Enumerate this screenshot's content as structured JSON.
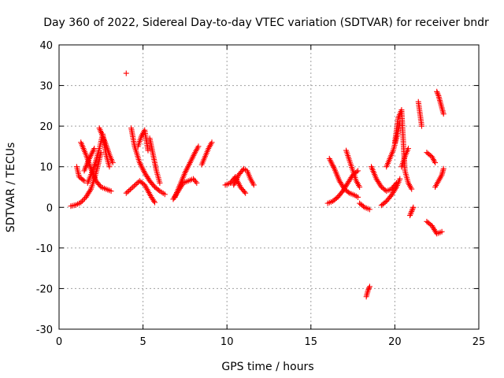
{
  "chart_data": {
    "type": "scatter",
    "title": "Day 360 of 2022, Sidereal Day-to-day VTEC variation (SDTVAR) for receiver bndr",
    "xlabel": "GPS time / hours",
    "ylabel": "SDTVAR / TECUs",
    "xlim": [
      0,
      25
    ],
    "ylim": [
      -30,
      40
    ],
    "xticks": [
      0,
      5,
      10,
      15,
      20,
      25
    ],
    "yticks": [
      -30,
      -20,
      -10,
      0,
      10,
      20,
      30,
      40
    ],
    "xtick_labels": [
      "0",
      "5",
      "10",
      "15",
      "20",
      "25"
    ],
    "ytick_labels": [
      "-30",
      "-20",
      "-10",
      "0",
      "10",
      "20",
      "30",
      "40"
    ],
    "grid": true,
    "marker": "+",
    "color": "#ff0000",
    "series": [
      {
        "name": "s1",
        "x": [
          0.7,
          1.0,
          1.3,
          1.6,
          1.9,
          2.1,
          2.3,
          2.5
        ],
        "y": [
          0.3,
          0.6,
          1.2,
          2.5,
          4.5,
          7.0,
          10.0,
          13.5
        ]
      },
      {
        "name": "s2",
        "x": [
          1.3,
          1.6,
          1.9,
          2.2,
          2.5,
          2.8,
          3.1
        ],
        "y": [
          16.0,
          13.0,
          9.5,
          6.5,
          5.0,
          4.5,
          4.0
        ]
      },
      {
        "name": "s3",
        "x": [
          1.7,
          1.95,
          2.2,
          2.4,
          2.6,
          2.8,
          3.0
        ],
        "y": [
          6.0,
          8.5,
          11.5,
          14.5,
          18.0,
          13.0,
          10.0
        ]
      },
      {
        "name": "s4",
        "x": [
          1.5,
          1.8,
          2.1
        ],
        "y": [
          9.0,
          12.0,
          14.5
        ]
      },
      {
        "name": "s5",
        "x": [
          2.4,
          2.7,
          3.0,
          3.2
        ],
        "y": [
          19.5,
          16.5,
          13.0,
          11.0
        ]
      },
      {
        "name": "s6",
        "x": [
          1.05,
          1.2,
          1.5
        ],
        "y": [
          10.0,
          7.5,
          6.5
        ]
      },
      {
        "name": "s7",
        "x": [
          4.0
        ],
        "y": [
          33.0
        ]
      },
      {
        "name": "s8",
        "x": [
          4.0,
          4.4,
          4.8,
          5.1,
          5.3,
          5.5,
          5.7
        ],
        "y": [
          3.5,
          5.0,
          6.5,
          5.5,
          4.0,
          2.5,
          1.2
        ]
      },
      {
        "name": "s9",
        "x": [
          4.3,
          4.5,
          4.8,
          5.1,
          5.4,
          5.7,
          6.0,
          6.3
        ],
        "y": [
          19.5,
          15.0,
          11.0,
          8.5,
          6.5,
          5.0,
          4.0,
          3.2
        ]
      },
      {
        "name": "s10",
        "x": [
          4.7,
          4.9,
          5.1,
          5.3
        ],
        "y": [
          15.0,
          17.5,
          19.0,
          14.0
        ]
      },
      {
        "name": "s11",
        "x": [
          5.4,
          5.6,
          5.8,
          6.0
        ],
        "y": [
          17.0,
          13.0,
          9.0,
          6.0
        ]
      },
      {
        "name": "s12",
        "x": [
          6.8,
          7.1,
          7.4,
          7.7,
          8.0,
          8.2
        ],
        "y": [
          2.0,
          4.0,
          6.0,
          6.5,
          7.0,
          6.0
        ]
      },
      {
        "name": "s13",
        "x": [
          6.9,
          7.2,
          7.5,
          7.8,
          8.1,
          8.3
        ],
        "y": [
          2.5,
          5.5,
          8.5,
          11.0,
          13.5,
          15.0
        ]
      },
      {
        "name": "s14",
        "x": [
          8.5,
          8.7,
          8.9,
          9.1
        ],
        "y": [
          10.5,
          12.5,
          14.5,
          16.0
        ]
      },
      {
        "name": "s15",
        "x": [
          9.9,
          10.2,
          10.5,
          10.8,
          11.1
        ],
        "y": [
          5.5,
          6.0,
          7.5,
          5.0,
          3.5
        ]
      },
      {
        "name": "s16",
        "x": [
          10.4,
          10.7,
          11.0,
          11.2,
          11.4,
          11.6
        ],
        "y": [
          5.5,
          8.0,
          9.5,
          9.0,
          7.0,
          5.5
        ]
      },
      {
        "name": "s17",
        "x": [
          16.0,
          16.3,
          16.6,
          16.9,
          17.2,
          17.5,
          17.8
        ],
        "y": [
          1.0,
          1.5,
          2.5,
          4.0,
          6.0,
          8.0,
          9.0
        ]
      },
      {
        "name": "s18",
        "x": [
          16.1,
          16.4,
          16.7,
          17.0,
          17.3,
          17.6,
          17.8
        ],
        "y": [
          12.0,
          9.5,
          6.5,
          4.5,
          3.5,
          3.0,
          2.5
        ]
      },
      {
        "name": "s19",
        "x": [
          17.1,
          17.3,
          17.5,
          17.7,
          17.9
        ],
        "y": [
          14.0,
          11.5,
          9.0,
          6.5,
          5.0
        ]
      },
      {
        "name": "s20",
        "x": [
          17.9,
          18.2,
          18.5
        ],
        "y": [
          1.0,
          0.0,
          -0.5
        ]
      },
      {
        "name": "s21",
        "x": [
          18.3,
          18.4,
          18.5
        ],
        "y": [
          -22.0,
          -20.5,
          -19.5
        ]
      },
      {
        "name": "s22",
        "x": [
          18.6,
          18.9,
          19.2,
          19.5,
          19.8,
          20.1
        ],
        "y": [
          10.0,
          7.0,
          5.0,
          4.0,
          4.5,
          6.0
        ]
      },
      {
        "name": "s23",
        "x": [
          19.2,
          19.5,
          19.8,
          20.1,
          20.3
        ],
        "y": [
          0.5,
          1.5,
          3.0,
          5.0,
          7.0
        ]
      },
      {
        "name": "s24",
        "x": [
          19.5,
          19.7,
          19.9,
          20.1,
          20.3
        ],
        "y": [
          10.0,
          12.0,
          14.0,
          17.0,
          21.0
        ]
      },
      {
        "name": "s25",
        "x": [
          20.0,
          20.2,
          20.4,
          20.6,
          20.8,
          21.0
        ],
        "y": [
          16.0,
          22.0,
          24.0,
          9.0,
          6.0,
          4.5
        ]
      },
      {
        "name": "s26",
        "x": [
          20.4,
          20.6,
          20.8
        ],
        "y": [
          10.0,
          12.5,
          14.5
        ]
      },
      {
        "name": "s27",
        "x": [
          20.9,
          21.0,
          21.1
        ],
        "y": [
          -2.0,
          -1.0,
          0.0
        ]
      },
      {
        "name": "s28",
        "x": [
          21.4,
          21.5,
          21.6
        ],
        "y": [
          26.0,
          23.0,
          20.0
        ]
      },
      {
        "name": "s29",
        "x": [
          21.9,
          22.2,
          22.4
        ],
        "y": [
          13.5,
          12.5,
          11.0
        ]
      },
      {
        "name": "s30",
        "x": [
          22.4,
          22.6,
          22.8,
          22.9
        ],
        "y": [
          5.0,
          6.5,
          8.0,
          9.5
        ]
      },
      {
        "name": "s31",
        "x": [
          21.9,
          22.2,
          22.5,
          22.8
        ],
        "y": [
          -3.5,
          -4.5,
          -6.5,
          -6.0
        ]
      },
      {
        "name": "s32",
        "x": [
          22.5,
          22.6,
          22.7,
          22.8,
          22.9
        ],
        "y": [
          28.5,
          27.5,
          26.0,
          24.5,
          23.0
        ]
      }
    ]
  }
}
